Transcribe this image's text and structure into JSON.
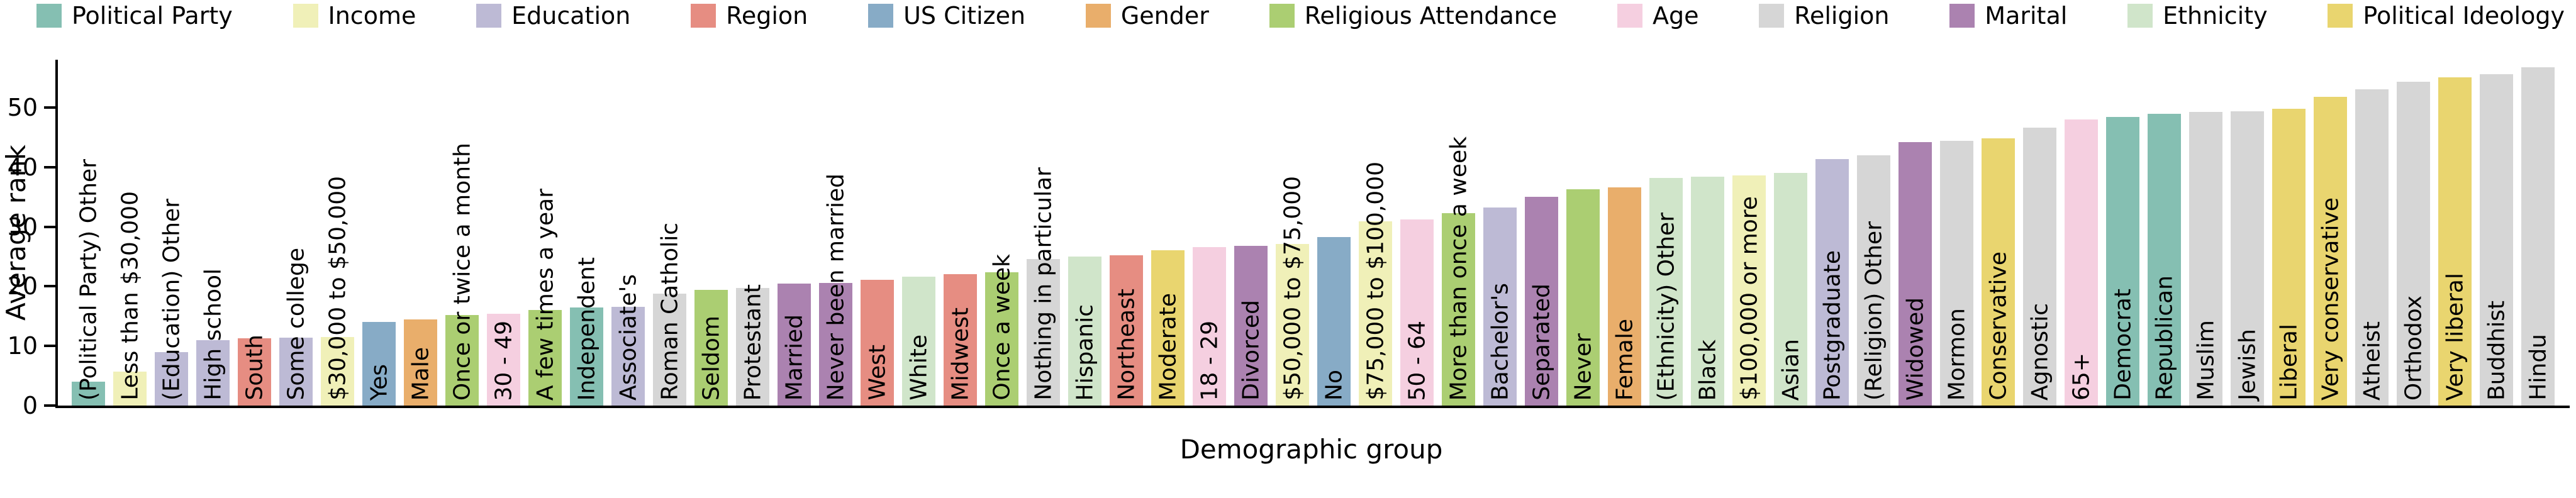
{
  "figure": {
    "background": "#ffffff",
    "axis_color": "#000000",
    "text_color": "#000000"
  },
  "chart_data": {
    "type": "bar",
    "title": "",
    "xlabel": "Demographic group",
    "ylabel": "Average rank",
    "ylim": [
      0,
      58
    ],
    "yticks": [
      0,
      10,
      20,
      30,
      40,
      50
    ],
    "grid": false,
    "legend_position": "top",
    "legend": [
      {
        "label": "Political Party",
        "key": "political_party"
      },
      {
        "label": "Income",
        "key": "income"
      },
      {
        "label": "Education",
        "key": "education"
      },
      {
        "label": "Region",
        "key": "region"
      },
      {
        "label": "US Citizen",
        "key": "us_citizen"
      },
      {
        "label": "Gender",
        "key": "gender"
      },
      {
        "label": "Religious Attendance",
        "key": "religious_attendance"
      },
      {
        "label": "Age",
        "key": "age"
      },
      {
        "label": "Religion",
        "key": "religion"
      },
      {
        "label": "Marital",
        "key": "marital"
      },
      {
        "label": "Ethnicity",
        "key": "ethnicity"
      },
      {
        "label": "Political Ideology",
        "key": "political_ideology"
      }
    ],
    "category_colors": {
      "political_party": "#85bfb2",
      "income": "#f0f0b8",
      "education": "#bdbad5",
      "region": "#e68d82",
      "us_citizen": "#87abc6",
      "gender": "#e9ae6b",
      "religious_attendance": "#abce72",
      "age": "#f5cfe0",
      "religion": "#d6d6d6",
      "marital": "#ab82b0",
      "ethnicity": "#d0e5ca",
      "political_ideology": "#e9d56f"
    },
    "bars": [
      {
        "label": "(Political Party) Other",
        "value": 4.0,
        "category": "political_party"
      },
      {
        "label": "Less than $30,000",
        "value": 5.7,
        "category": "income"
      },
      {
        "label": "(Education) Other",
        "value": 9.0,
        "category": "education"
      },
      {
        "label": "High school",
        "value": 11.0,
        "category": "education"
      },
      {
        "label": "South",
        "value": 11.3,
        "category": "region"
      },
      {
        "label": "Some college",
        "value": 11.4,
        "category": "education"
      },
      {
        "label": "$30,000 to $50,000",
        "value": 11.5,
        "category": "income"
      },
      {
        "label": "Yes",
        "value": 14.0,
        "category": "us_citizen"
      },
      {
        "label": "Male",
        "value": 14.5,
        "category": "gender"
      },
      {
        "label": "Once or twice a month",
        "value": 15.2,
        "category": "religious_attendance"
      },
      {
        "label": "30 - 49",
        "value": 15.4,
        "category": "age"
      },
      {
        "label": "A few times a year",
        "value": 16.0,
        "category": "religious_attendance"
      },
      {
        "label": "Independent",
        "value": 16.4,
        "category": "political_party"
      },
      {
        "label": "Associate's",
        "value": 16.6,
        "category": "education"
      },
      {
        "label": "Roman Catholic",
        "value": 18.8,
        "category": "religion"
      },
      {
        "label": "Seldom",
        "value": 19.4,
        "category": "religious_attendance"
      },
      {
        "label": "Protestant",
        "value": 19.7,
        "category": "religion"
      },
      {
        "label": "Married",
        "value": 20.5,
        "category": "marital"
      },
      {
        "label": "Never been married",
        "value": 20.6,
        "category": "marital"
      },
      {
        "label": "West",
        "value": 21.1,
        "category": "region"
      },
      {
        "label": "White",
        "value": 21.6,
        "category": "ethnicity"
      },
      {
        "label": "Midwest",
        "value": 22.0,
        "category": "region"
      },
      {
        "label": "Once a week",
        "value": 22.4,
        "category": "religious_attendance"
      },
      {
        "label": "Nothing in particular",
        "value": 24.6,
        "category": "religion"
      },
      {
        "label": "Hispanic",
        "value": 25.0,
        "category": "ethnicity"
      },
      {
        "label": "Northeast",
        "value": 25.2,
        "category": "region"
      },
      {
        "label": "Moderate",
        "value": 26.0,
        "category": "political_ideology"
      },
      {
        "label": "18 - 29",
        "value": 26.6,
        "category": "age"
      },
      {
        "label": "Divorced",
        "value": 26.8,
        "category": "marital"
      },
      {
        "label": "$50,000 to $75,000",
        "value": 27.1,
        "category": "income"
      },
      {
        "label": "No",
        "value": 28.3,
        "category": "us_citizen"
      },
      {
        "label": "$75,000 to $100,000",
        "value": 30.9,
        "category": "income"
      },
      {
        "label": "50 - 64",
        "value": 31.2,
        "category": "age"
      },
      {
        "label": "More than once a week",
        "value": 32.3,
        "category": "religious_attendance"
      },
      {
        "label": "Bachelor's",
        "value": 33.2,
        "category": "education"
      },
      {
        "label": "Separated",
        "value": 35.0,
        "category": "marital"
      },
      {
        "label": "Never",
        "value": 36.3,
        "category": "religious_attendance"
      },
      {
        "label": "Female",
        "value": 36.6,
        "category": "gender"
      },
      {
        "label": "(Ethnicity) Other",
        "value": 38.2,
        "category": "ethnicity"
      },
      {
        "label": "Black",
        "value": 38.4,
        "category": "ethnicity"
      },
      {
        "label": "$100,000 or more",
        "value": 38.6,
        "category": "income"
      },
      {
        "label": "Asian",
        "value": 39.0,
        "category": "ethnicity"
      },
      {
        "label": "Postgraduate",
        "value": 41.3,
        "category": "education"
      },
      {
        "label": "(Religion) Other",
        "value": 42.0,
        "category": "religion"
      },
      {
        "label": "Widowed",
        "value": 44.2,
        "category": "marital"
      },
      {
        "label": "Mormon",
        "value": 44.4,
        "category": "religion"
      },
      {
        "label": "Conservative",
        "value": 44.8,
        "category": "political_ideology"
      },
      {
        "label": "Agnostic",
        "value": 46.6,
        "category": "religion"
      },
      {
        "label": "65+",
        "value": 48.0,
        "category": "age"
      },
      {
        "label": "Democrat",
        "value": 48.4,
        "category": "political_party"
      },
      {
        "label": "Republican",
        "value": 48.9,
        "category": "political_party"
      },
      {
        "label": "Muslim",
        "value": 49.2,
        "category": "religion"
      },
      {
        "label": "Jewish",
        "value": 49.4,
        "category": "religion"
      },
      {
        "label": "Liberal",
        "value": 49.8,
        "category": "political_ideology"
      },
      {
        "label": "Very conservative",
        "value": 51.8,
        "category": "political_ideology"
      },
      {
        "label": "Atheist",
        "value": 53.0,
        "category": "religion"
      },
      {
        "label": "Orthodox",
        "value": 54.3,
        "category": "religion"
      },
      {
        "label": "Very liberal",
        "value": 55.0,
        "category": "political_ideology"
      },
      {
        "label": "Buddhist",
        "value": 55.6,
        "category": "religion"
      },
      {
        "label": "Hindu",
        "value": 56.7,
        "category": "religion"
      }
    ]
  }
}
